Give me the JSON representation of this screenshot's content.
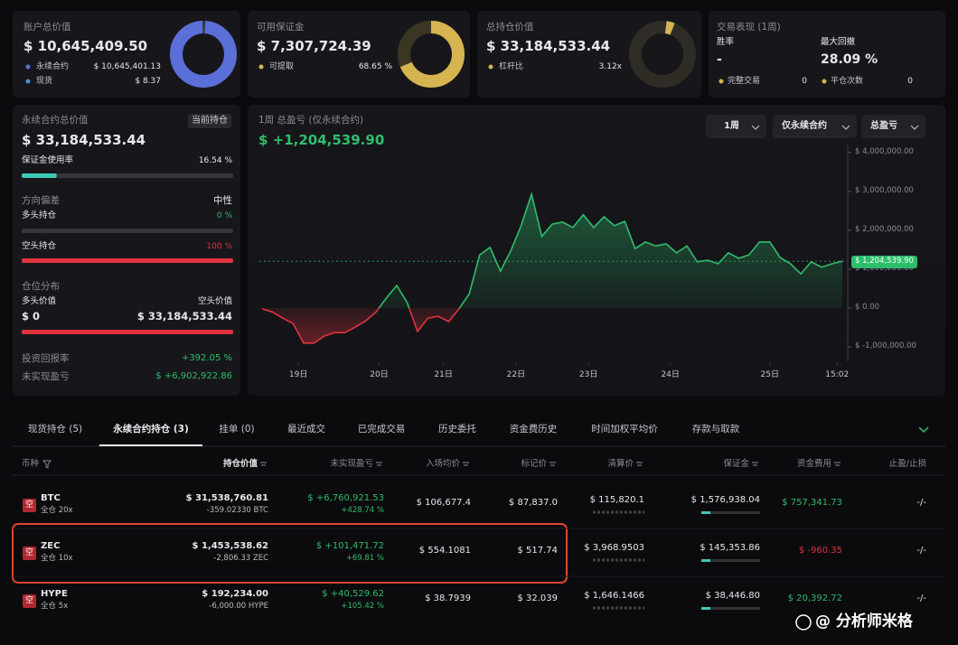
{
  "cards": [
    {
      "title": "账户总价值",
      "value": "$ 10,645,409.50",
      "rows": [
        {
          "label": "永续合约",
          "value": {
            "value": 10645401.13,
            "label": "$ 10,645,401.13"
          }
        },
        {
          "label": "现货",
          "value": {
            "value": 8.37,
            "label": "$ 8.37"
          }
        }
      ]
    },
    {
      "title": "可用保证金",
      "value": "$ 7,307,724.39",
      "rows": [
        {
          "label": "可提取",
          "value": {
            "value": 68.65,
            "label": "68.65 %"
          }
        }
      ]
    },
    {
      "title": "总持仓价值",
      "value": "$ 33,184,533.44",
      "rows": [
        {
          "label": "杠杆比",
          "value": {
            "value": 3.12,
            "label": "3.12x"
          }
        }
      ]
    }
  ],
  "performance": {
    "title": "交易表现 (1周)",
    "stats": [
      {
        "label": "胜率",
        "value": "-"
      },
      {
        "label": "最大回撤",
        "value": "28.09 %"
      }
    ],
    "counts": [
      {
        "label": "完整交易",
        "value": 0
      },
      {
        "label": "平仓次数",
        "value": 0
      }
    ]
  },
  "perp": {
    "title": "永续合约总价值",
    "badge": "当前持仓",
    "value": "$ 33,184,533.44",
    "margin_usage": {
      "label": "保证金使用率",
      "value": {
        "value": 16.54,
        "label": "16.54 %"
      }
    },
    "bias": {
      "label": "方向偏差",
      "value": "中性",
      "long": {
        "label": "多头持仓",
        "value": {
          "value": 0,
          "label": "0 %"
        }
      },
      "short": {
        "label": "空头持仓",
        "value": {
          "value": 100,
          "label": "100 %"
        }
      }
    },
    "distribution": {
      "label": "仓位分布",
      "long_label": "多头价值",
      "short_label": "空头价值",
      "long_value": "$ 0",
      "short_value": "$ 33,184,533.44"
    },
    "roi": {
      "label": "投资回报率",
      "value": "+392.05 %"
    },
    "upnl": {
      "label": "未实现盈亏",
      "value": "$ +6,902,922.86"
    }
  },
  "pnl_chart": {
    "type": "line",
    "title": "1周 总盈亏 (仅永续合约)",
    "total": "$ +1,204,539.90",
    "controls": [
      "1周",
      "仅永续合约",
      "总盈亏"
    ],
    "values": [
      -20000,
      -100000,
      -260000,
      -400000,
      -900000,
      -900000,
      -720000,
      -630000,
      -630000,
      -490000,
      -330000,
      -100000,
      260000,
      580000,
      140000,
      -600000,
      -260000,
      -210000,
      -350000,
      -20000,
      370000,
      1370000,
      1560000,
      950000,
      1470000,
      2120000,
      2930000,
      1840000,
      2160000,
      2210000,
      2070000,
      2400000,
      2070000,
      2350000,
      2120000,
      2230000,
      1530000,
      1700000,
      1600000,
      1650000,
      1420000,
      1600000,
      1190000,
      1230000,
      1140000,
      1420000,
      1280000,
      1370000,
      1700000,
      1700000,
      1300000,
      1140000,
      880000,
      1190000,
      1050000,
      1140000,
      1204539.9
    ],
    "xticks": [
      {
        "value": 3.5,
        "label": "19日"
      },
      {
        "value": 11.3,
        "label": "20日"
      },
      {
        "value": 17.5,
        "label": "21日"
      },
      {
        "value": 24.5,
        "label": "22日"
      },
      {
        "value": 31.5,
        "label": "23日"
      },
      {
        "value": 39.4,
        "label": "24日"
      },
      {
        "value": 49,
        "label": "25日"
      },
      {
        "value": 55.5,
        "label": "15:02"
      }
    ],
    "ylim": [
      -1370000,
      4090000
    ],
    "yticks": [
      {
        "value": 4000000,
        "label": "$ 4,000,000.00"
      },
      {
        "value": 3000000,
        "label": "$ 3,000,000.00"
      },
      {
        "value": 2000000,
        "label": "$ 2,000,000.00"
      },
      {
        "value": 1000000,
        "label": "$ 1,000,000.00"
      },
      {
        "value": 0,
        "label": "$ 0.00"
      },
      {
        "value": -1000000,
        "label": "$ -1,000,000.00"
      }
    ],
    "current_label": "$ 1,204,539.90",
    "color": "#2ebd6b",
    "negative_color": "#e0323c"
  },
  "tabs": {
    "items": [
      "现货持仓 (5)",
      "永续合约持仓 (3)",
      "挂单 (0)",
      "最近成交",
      "已完成交易",
      "历史委托",
      "资金费历史",
      "时间加权平均价",
      "存款与取款"
    ],
    "active": 1
  },
  "table": {
    "columns": [
      "币种",
      "持仓价值",
      "未实现盈亏",
      "入场均价",
      "标记价",
      "清算价",
      "保证金",
      "资金费用",
      "止盈/止损"
    ],
    "highlight_row": 1,
    "rows": [
      {
        "side": "空",
        "symbol": "BTC",
        "mode": "全仓 20x",
        "position_value": "$ 31,538,760.81",
        "size": "-359.02330 BTC",
        "upnl": "$ +6,760,921.53",
        "upnl_pct": "+428.74 %",
        "entry": "$ 106,677.4",
        "mark": "$ 87,837.0",
        "liq": "$ 115,820.1",
        "margin": "$ 1,576,938.04",
        "funding": "$ 757,341.73",
        "tpsl": "-/-"
      },
      {
        "side": "空",
        "symbol": "ZEC",
        "mode": "全仓 10x",
        "position_value": "$ 1,453,538.62",
        "size": "-2,806.33 ZEC",
        "upnl": "$ +101,471.72",
        "upnl_pct": "+69.81 %",
        "entry": "$ 554.1081",
        "mark": "$ 517.74",
        "liq": "$ 3,968.9503",
        "margin": "$ 145,353.86",
        "funding": "$ -960.35",
        "tpsl": "-/-"
      },
      {
        "side": "空",
        "symbol": "HYPE",
        "mode": "全仓 5x",
        "position_value": "$ 192,234.00",
        "size": "-6,000.00 HYPE",
        "upnl": "$ +40,529.62",
        "upnl_pct": "+105.42 %",
        "entry": "$ 38.7939",
        "mark": "$ 32.039",
        "liq": "$ 1,646.1466",
        "margin": "$ 38,446.80",
        "funding": "$ 20,392.72",
        "tpsl": "-/-"
      }
    ]
  },
  "watermark": "@ 分析师米格"
}
